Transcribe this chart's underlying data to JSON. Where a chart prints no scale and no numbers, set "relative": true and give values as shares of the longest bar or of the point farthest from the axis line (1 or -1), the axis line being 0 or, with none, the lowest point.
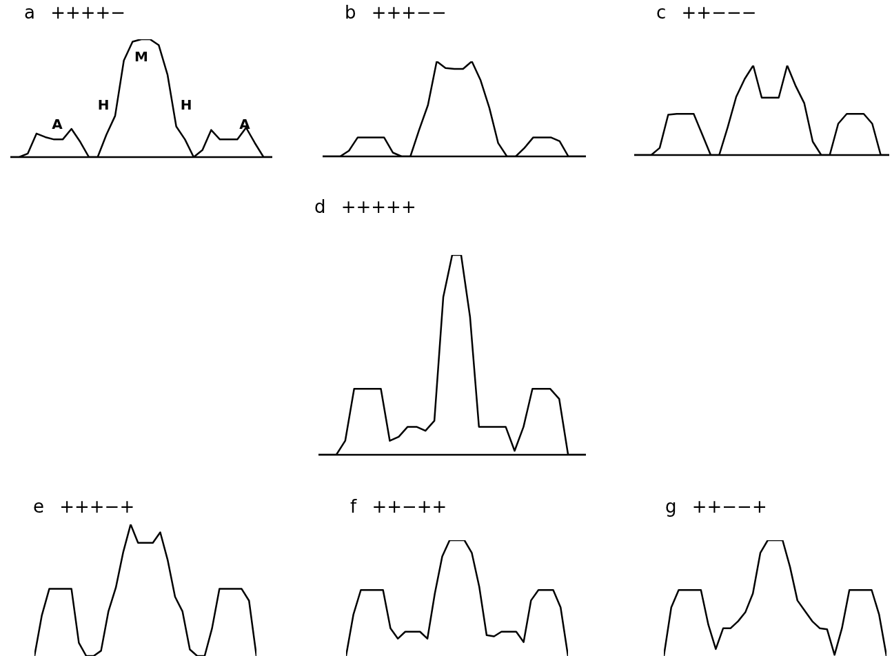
{
  "chart_data": [
    {
      "type": "line",
      "title": "a ++++−",
      "relative": true,
      "annotations": [
        "A",
        "H",
        "M",
        "H",
        "A"
      ],
      "categories": [
        null,
        null,
        null,
        null,
        null,
        null,
        null,
        null,
        null,
        null,
        null,
        null,
        null,
        null,
        null,
        null,
        null,
        null,
        null,
        null,
        null,
        null,
        null,
        null,
        null,
        null,
        null,
        null,
        null,
        null,
        null
      ],
      "series": [
        {
          "color": "#000000",
          "values": [
            0,
            0,
            0.03,
            0.2,
            0.17,
            0.15,
            0.15,
            0.24,
            0.13,
            0,
            0,
            0.19,
            0.35,
            0.82,
            0.98,
            1,
            1,
            0.95,
            0.7,
            0.26,
            0.15,
            0,
            0.06,
            0.23,
            0.15,
            0.15,
            0.15,
            0.25,
            0.12,
            0,
            0
          ]
        }
      ]
    },
    {
      "type": "line",
      "title": "b +++−−",
      "relative": true,
      "categories": [
        null,
        null,
        null,
        null,
        null,
        null,
        null,
        null,
        null,
        null,
        null,
        null,
        null,
        null,
        null,
        null,
        null,
        null,
        null,
        null,
        null,
        null,
        null,
        null,
        null,
        null,
        null,
        null,
        null,
        null,
        null
      ],
      "series": [
        {
          "color": "#000000",
          "values": [
            0,
            0,
            0,
            0.06,
            0.2,
            0.2,
            0.2,
            0.2,
            0.04,
            0,
            0,
            0.28,
            0.54,
            1,
            0.93,
            0.92,
            0.92,
            1,
            0.8,
            0.51,
            0.14,
            0,
            0,
            0.09,
            0.2,
            0.2,
            0.2,
            0.16,
            0,
            0,
            0
          ]
        }
      ]
    },
    {
      "type": "line",
      "title": "c ++−−−",
      "relative": true,
      "categories": [
        null,
        null,
        null,
        null,
        null,
        null,
        null,
        null,
        null,
        null,
        null,
        null,
        null,
        null,
        null,
        null,
        null,
        null,
        null,
        null,
        null,
        null,
        null,
        null,
        null,
        null,
        null,
        null,
        null,
        null,
        null
      ],
      "series": [
        {
          "color": "#000000",
          "values": [
            0,
            0,
            0,
            0.08,
            0.45,
            0.46,
            0.46,
            0.46,
            0.23,
            0,
            0,
            0.31,
            0.65,
            0.85,
            1,
            0.64,
            0.64,
            0.64,
            1,
            0.77,
            0.58,
            0.15,
            0,
            0,
            0.35,
            0.46,
            0.46,
            0.46,
            0.35,
            0,
            0
          ]
        }
      ]
    },
    {
      "type": "line",
      "title": "d +++++",
      "relative": true,
      "categories": [
        null,
        null,
        null,
        null,
        null,
        null,
        null,
        null,
        null,
        null,
        null,
        null,
        null,
        null,
        null,
        null,
        null,
        null,
        null,
        null,
        null,
        null,
        null,
        null,
        null,
        null,
        null,
        null,
        null,
        null,
        null
      ],
      "series": [
        {
          "color": "#000000",
          "values": [
            0,
            0,
            0,
            0.07,
            0.33,
            0.33,
            0.33,
            0.33,
            0.07,
            0.09,
            0.14,
            0.14,
            0.12,
            0.17,
            0.79,
            1,
            1,
            0.69,
            0.14,
            0.14,
            0.14,
            0.14,
            0.02,
            0.14,
            0.33,
            0.33,
            0.33,
            0.28,
            0,
            0,
            0
          ]
        }
      ]
    },
    {
      "type": "line",
      "title": "e +++−+",
      "relative": true,
      "categories": [
        null,
        null,
        null,
        null,
        null,
        null,
        null,
        null,
        null,
        null,
        null,
        null,
        null,
        null,
        null,
        null,
        null,
        null,
        null,
        null,
        null,
        null,
        null,
        null,
        null,
        null,
        null,
        null,
        null,
        null,
        null
      ],
      "series": [
        {
          "color": "#000000",
          "values": [
            0,
            0.31,
            0.51,
            0.51,
            0.51,
            0.51,
            0.1,
            0,
            0,
            0.04,
            0.34,
            0.52,
            0.79,
            1,
            0.86,
            0.86,
            0.86,
            0.94,
            0.73,
            0.45,
            0.34,
            0.05,
            0,
            0,
            0.21,
            0.51,
            0.51,
            0.51,
            0.51,
            0.42,
            0
          ]
        }
      ]
    },
    {
      "type": "line",
      "title": "f ++−++",
      "relative": true,
      "categories": [
        null,
        null,
        null,
        null,
        null,
        null,
        null,
        null,
        null,
        null,
        null,
        null,
        null,
        null,
        null,
        null,
        null,
        null,
        null,
        null,
        null,
        null,
        null,
        null,
        null,
        null,
        null,
        null,
        null,
        null,
        null
      ],
      "series": [
        {
          "color": "#000000",
          "values": [
            0,
            0.36,
            0.57,
            0.57,
            0.57,
            0.57,
            0.24,
            0.15,
            0.21,
            0.21,
            0.21,
            0.15,
            0.54,
            0.86,
            1,
            1,
            1,
            0.89,
            0.6,
            0.18,
            0.17,
            0.21,
            0.21,
            0.21,
            0.12,
            0.48,
            0.57,
            0.57,
            0.57,
            0.42,
            0
          ]
        }
      ]
    },
    {
      "type": "line",
      "title": "g ++−−+",
      "relative": true,
      "categories": [
        null,
        null,
        null,
        null,
        null,
        null,
        null,
        null,
        null,
        null,
        null,
        null,
        null,
        null,
        null,
        null,
        null,
        null,
        null,
        null,
        null,
        null,
        null,
        null,
        null,
        null,
        null,
        null,
        null,
        null,
        null
      ],
      "series": [
        {
          "color": "#000000",
          "values": [
            0,
            0.42,
            0.57,
            0.57,
            0.57,
            0.57,
            0.27,
            0.06,
            0.24,
            0.24,
            0.3,
            0.38,
            0.54,
            0.89,
            1,
            1,
            1,
            0.77,
            0.48,
            0.39,
            0.3,
            0.24,
            0.23,
            0.01,
            0.24,
            0.57,
            0.57,
            0.57,
            0.57,
            0.36,
            0
          ]
        }
      ]
    }
  ]
}
